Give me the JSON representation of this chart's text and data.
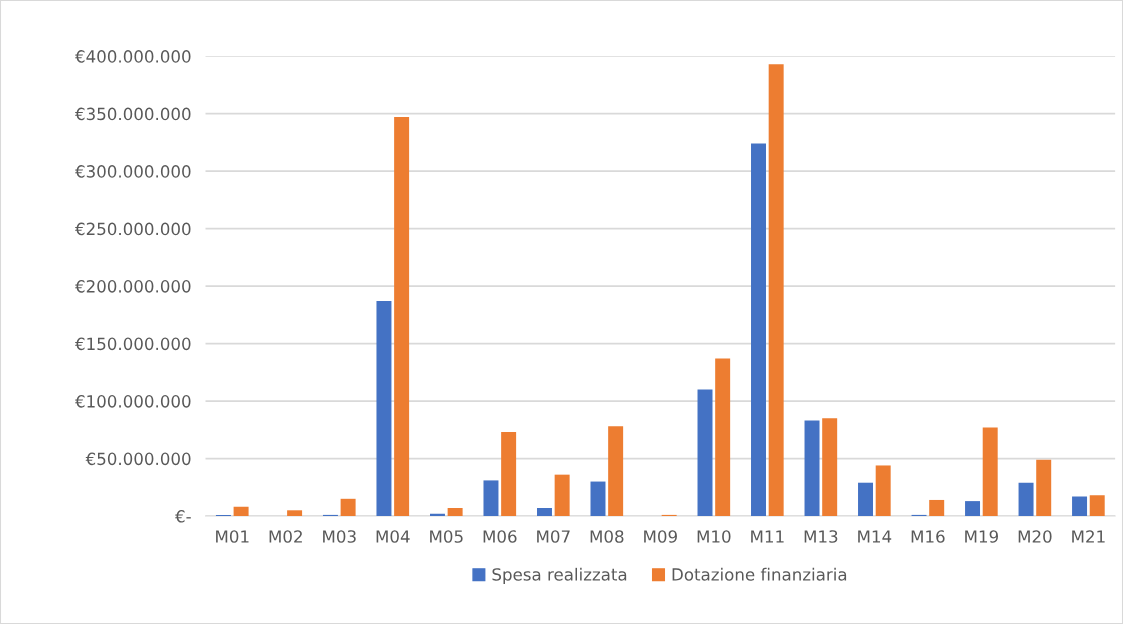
{
  "chart_data": {
    "type": "bar",
    "categories": [
      "M01",
      "M02",
      "M03",
      "M04",
      "M05",
      "M06",
      "M07",
      "M08",
      "M09",
      "M10",
      "M11",
      "M13",
      "M14",
      "M16",
      "M19",
      "M20",
      "M21"
    ],
    "series": [
      {
        "name": "Spesa realizzata",
        "color": "#4472c4",
        "values": [
          1000000,
          0,
          1000000,
          187000000,
          2000000,
          31000000,
          7000000,
          30000000,
          0,
          110000000,
          324000000,
          83000000,
          29000000,
          1000000,
          13000000,
          29000000,
          17000000
        ]
      },
      {
        "name": "Dotazione finanziaria",
        "color": "#ed7d31",
        "values": [
          8000000,
          5000000,
          15000000,
          347000000,
          7000000,
          73000000,
          36000000,
          78000000,
          1000000,
          137000000,
          393000000,
          85000000,
          44000000,
          14000000,
          77000000,
          49000000,
          18000000
        ]
      }
    ],
    "ylim": [
      0,
      400000000
    ],
    "yticks": [
      {
        "value": 0,
        "label": "€-"
      },
      {
        "value": 50000000,
        "label": "€50.000.000"
      },
      {
        "value": 100000000,
        "label": "€100.000.000"
      },
      {
        "value": 150000000,
        "label": "€150.000.000"
      },
      {
        "value": 200000000,
        "label": "€200.000.000"
      },
      {
        "value": 250000000,
        "label": "€250.000.000"
      },
      {
        "value": 300000000,
        "label": "€300.000.000"
      },
      {
        "value": 350000000,
        "label": "€350.000.000"
      },
      {
        "value": 400000000,
        "label": "€400.000.000"
      }
    ],
    "grid": "y",
    "legend": "bottom"
  }
}
